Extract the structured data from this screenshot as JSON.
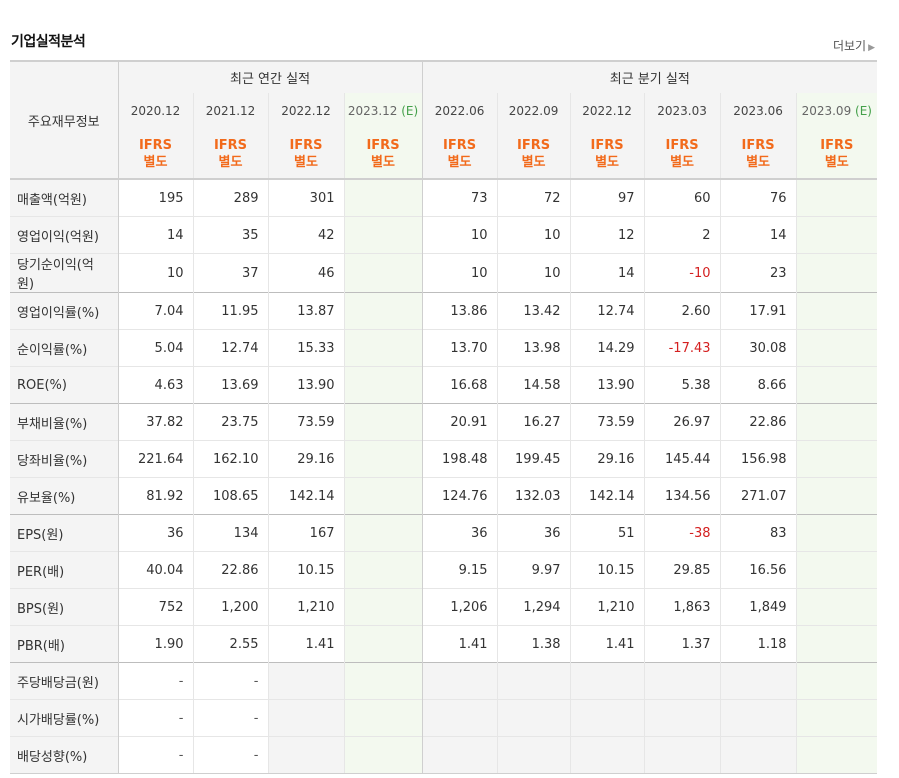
{
  "title": "기업실적분석",
  "more": "더보기",
  "header_label": "주요재무정보",
  "annual_label": "최근 연간 실적",
  "quarter_label": "최근 분기 실적",
  "periods": [
    "2020.12",
    "2021.12",
    "2022.12",
    "2023.12",
    "2022.06",
    "2022.09",
    "2022.12",
    "2023.03",
    "2023.06",
    "2023.09"
  ],
  "est_mark": "(E)",
  "ifrs_top": "IFRS",
  "ifrs_bottom": "별도",
  "rows": [
    {
      "label": "매출액(억원)",
      "values": [
        "195",
        "289",
        "301",
        "",
        "73",
        "72",
        "97",
        "60",
        "76",
        ""
      ]
    },
    {
      "label": "영업이익(억원)",
      "values": [
        "14",
        "35",
        "42",
        "",
        "10",
        "10",
        "12",
        "2",
        "14",
        ""
      ]
    },
    {
      "label": "당기순이익(억원)",
      "values": [
        "10",
        "37",
        "46",
        "",
        "10",
        "10",
        "14",
        "-10",
        "23",
        ""
      ]
    },
    {
      "label": "영업이익률(%)",
      "values": [
        "7.04",
        "11.95",
        "13.87",
        "",
        "13.86",
        "13.42",
        "12.74",
        "2.60",
        "17.91",
        ""
      ]
    },
    {
      "label": "순이익률(%)",
      "values": [
        "5.04",
        "12.74",
        "15.33",
        "",
        "13.70",
        "13.98",
        "14.29",
        "-17.43",
        "30.08",
        ""
      ]
    },
    {
      "label": "ROE(%)",
      "values": [
        "4.63",
        "13.69",
        "13.90",
        "",
        "16.68",
        "14.58",
        "13.90",
        "5.38",
        "8.66",
        ""
      ]
    },
    {
      "label": "부채비율(%)",
      "values": [
        "37.82",
        "23.75",
        "73.59",
        "",
        "20.91",
        "16.27",
        "73.59",
        "26.97",
        "22.86",
        ""
      ]
    },
    {
      "label": "당좌비율(%)",
      "values": [
        "221.64",
        "162.10",
        "29.16",
        "",
        "198.48",
        "199.45",
        "29.16",
        "145.44",
        "156.98",
        ""
      ]
    },
    {
      "label": "유보율(%)",
      "values": [
        "81.92",
        "108.65",
        "142.14",
        "",
        "124.76",
        "132.03",
        "142.14",
        "134.56",
        "271.07",
        ""
      ]
    },
    {
      "label": "EPS(원)",
      "values": [
        "36",
        "134",
        "167",
        "",
        "36",
        "36",
        "51",
        "-38",
        "83",
        ""
      ]
    },
    {
      "label": "PER(배)",
      "values": [
        "40.04",
        "22.86",
        "10.15",
        "",
        "9.15",
        "9.97",
        "10.15",
        "29.85",
        "16.56",
        ""
      ]
    },
    {
      "label": "BPS(원)",
      "values": [
        "752",
        "1,200",
        "1,210",
        "",
        "1,206",
        "1,294",
        "1,210",
        "1,863",
        "1,849",
        ""
      ]
    },
    {
      "label": "PBR(배)",
      "values": [
        "1.90",
        "2.55",
        "1.41",
        "",
        "1.41",
        "1.38",
        "1.41",
        "1.37",
        "1.18",
        ""
      ]
    },
    {
      "label": "주당배당금(원)",
      "values": [
        "-",
        "-",
        "",
        "",
        "",
        "",
        "",
        "",
        "",
        ""
      ]
    },
    {
      "label": "시가배당률(%)",
      "values": [
        "-",
        "-",
        "",
        "",
        "",
        "",
        "",
        "",
        "",
        ""
      ]
    },
    {
      "label": "배당성향(%)",
      "values": [
        "-",
        "-",
        "",
        "",
        "",
        "",
        "",
        "",
        "",
        ""
      ]
    }
  ],
  "colors": {
    "ifrs": "#f26a1b",
    "negative": "#d42020",
    "estimate_bg": "#f3f9ef",
    "header_bg": "#f4f4f4",
    "est_mark": "#44a04a"
  }
}
